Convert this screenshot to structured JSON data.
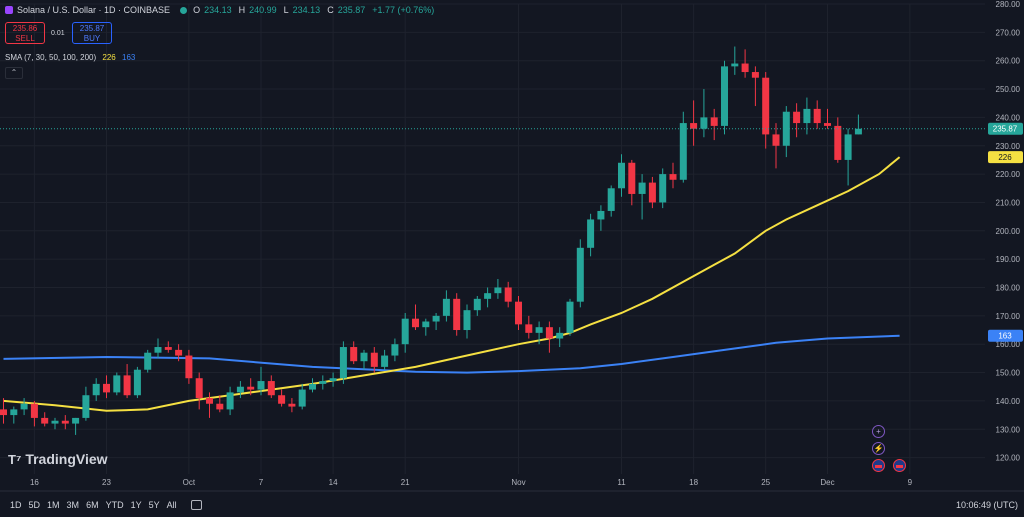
{
  "header": {
    "title": "Solana / U.S. Dollar · 1D · COINBASE",
    "o_label": "O",
    "o_value": "234.13",
    "h_label": "H",
    "h_value": "240.99",
    "l_label": "L",
    "l_value": "234.13",
    "c_label": "C",
    "c_value": "235.87",
    "change": "+1.77 (+0.76%)"
  },
  "trade": {
    "sell_price": "235.86",
    "sell_label": "SELL",
    "spread": "0.01",
    "buy_price": "235.87",
    "buy_label": "BUY"
  },
  "indicator": {
    "label": "SMA (7, 30, 50, 100, 200)",
    "value1": "226",
    "value2": "163"
  },
  "logo": "TradingView",
  "timeframes": [
    "1D",
    "5D",
    "1M",
    "3M",
    "6M",
    "YTD",
    "1Y",
    "5Y",
    "All"
  ],
  "clock": "10:06:49 (UTC)",
  "colors": {
    "up": "#26a69a",
    "down": "#f23645",
    "sma_short": "#f5e042",
    "sma_long": "#3b82f6",
    "bg": "#131722"
  },
  "chart_data": {
    "type": "candlestick",
    "ylim": [
      115,
      280
    ],
    "y_ticks": [
      "120.00",
      "130.00",
      "140.00",
      "150.00",
      "160.00",
      "170.00",
      "180.00",
      "190.00",
      "200.00",
      "210.00",
      "220.00",
      "230.00",
      "240.00",
      "250.00",
      "260.00",
      "270.00",
      "280.00"
    ],
    "x_ticks": [
      {
        "label": "16",
        "index": 3
      },
      {
        "label": "23",
        "index": 10
      },
      {
        "label": "Oct",
        "index": 18
      },
      {
        "label": "7",
        "index": 25
      },
      {
        "label": "14",
        "index": 32
      },
      {
        "label": "21",
        "index": 39
      },
      {
        "label": "Nov",
        "index": 50
      },
      {
        "label": "11",
        "index": 60
      },
      {
        "label": "18",
        "index": 67
      },
      {
        "label": "25",
        "index": 74
      },
      {
        "label": "Dec",
        "index": 80
      },
      {
        "label": "9",
        "index": 88
      }
    ],
    "candles": [
      [
        137,
        141,
        132,
        135
      ],
      [
        135,
        138,
        132,
        137
      ],
      [
        137,
        141,
        135,
        139
      ],
      [
        139,
        140,
        131,
        134
      ],
      [
        134,
        136,
        131,
        132
      ],
      [
        132,
        134,
        130,
        133
      ],
      [
        133,
        135,
        130,
        132
      ],
      [
        132,
        134,
        128,
        134
      ],
      [
        134,
        145,
        133,
        142
      ],
      [
        142,
        148,
        140,
        146
      ],
      [
        146,
        149,
        141,
        143
      ],
      [
        143,
        150,
        142,
        149
      ],
      [
        149,
        153,
        141,
        142
      ],
      [
        142,
        152,
        141,
        151
      ],
      [
        151,
        158,
        150,
        157
      ],
      [
        157,
        162,
        155,
        159
      ],
      [
        159,
        161,
        157,
        158
      ],
      [
        158,
        160,
        154,
        156
      ],
      [
        156,
        158,
        146,
        148
      ],
      [
        148,
        150,
        137,
        141
      ],
      [
        141,
        143,
        134,
        139
      ],
      [
        139,
        142,
        136,
        137
      ],
      [
        137,
        145,
        135,
        143
      ],
      [
        143,
        147,
        141,
        145
      ],
      [
        145,
        148,
        142,
        144
      ],
      [
        144,
        152,
        142,
        147
      ],
      [
        147,
        149,
        141,
        142
      ],
      [
        142,
        144,
        138,
        139
      ],
      [
        139,
        141,
        136,
        138
      ],
      [
        138,
        146,
        137,
        144
      ],
      [
        144,
        148,
        143,
        146
      ],
      [
        146,
        149,
        144,
        147
      ],
      [
        147,
        150,
        145,
        148
      ],
      [
        148,
        161,
        146,
        159
      ],
      [
        159,
        161,
        153,
        154
      ],
      [
        154,
        158,
        151,
        157
      ],
      [
        157,
        159,
        150,
        152
      ],
      [
        152,
        158,
        151,
        156
      ],
      [
        156,
        162,
        154,
        160
      ],
      [
        160,
        171,
        157,
        169
      ],
      [
        169,
        174,
        165,
        166
      ],
      [
        166,
        169,
        163,
        168
      ],
      [
        168,
        171,
        165,
        170
      ],
      [
        170,
        179,
        168,
        176
      ],
      [
        176,
        178,
        163,
        165
      ],
      [
        165,
        174,
        162,
        172
      ],
      [
        172,
        177,
        170,
        176
      ],
      [
        176,
        180,
        173,
        178
      ],
      [
        178,
        183,
        176,
        180
      ],
      [
        180,
        182,
        173,
        175
      ],
      [
        175,
        177,
        165,
        167
      ],
      [
        167,
        170,
        162,
        164
      ],
      [
        164,
        168,
        160,
        166
      ],
      [
        166,
        168,
        157,
        162
      ],
      [
        162,
        166,
        159,
        164
      ],
      [
        164,
        176,
        163,
        175
      ],
      [
        175,
        197,
        173,
        194
      ],
      [
        194,
        206,
        191,
        204
      ],
      [
        204,
        209,
        200,
        207
      ],
      [
        207,
        216,
        205,
        215
      ],
      [
        215,
        227,
        212,
        224
      ],
      [
        224,
        225,
        209,
        213
      ],
      [
        213,
        220,
        204,
        217
      ],
      [
        217,
        219,
        208,
        210
      ],
      [
        210,
        222,
        208,
        220
      ],
      [
        220,
        224,
        215,
        218
      ],
      [
        218,
        242,
        217,
        238
      ],
      [
        238,
        246,
        230,
        236
      ],
      [
        236,
        250,
        233,
        240
      ],
      [
        240,
        243,
        232,
        237
      ],
      [
        237,
        260,
        234,
        258
      ],
      [
        258,
        265,
        255,
        259
      ],
      [
        259,
        264,
        254,
        256
      ],
      [
        256,
        258,
        244,
        254
      ],
      [
        254,
        256,
        229,
        234
      ],
      [
        234,
        238,
        222,
        230
      ],
      [
        230,
        244,
        226,
        242
      ],
      [
        242,
        245,
        233,
        238
      ],
      [
        238,
        247,
        234,
        243
      ],
      [
        243,
        246,
        236,
        238
      ],
      [
        238,
        243,
        236,
        237
      ],
      [
        237,
        240,
        224,
        225
      ],
      [
        225,
        236,
        216,
        234
      ],
      [
        234,
        241,
        234,
        236
      ]
    ],
    "sma_short": [
      [
        0,
        140
      ],
      [
        5,
        138.5
      ],
      [
        10,
        136.5
      ],
      [
        14,
        137
      ],
      [
        18,
        140
      ],
      [
        22,
        142
      ],
      [
        26,
        144
      ],
      [
        30,
        146
      ],
      [
        35,
        149
      ],
      [
        40,
        152
      ],
      [
        45,
        156
      ],
      [
        50,
        160
      ],
      [
        53,
        162
      ],
      [
        55,
        164
      ],
      [
        57,
        167
      ],
      [
        60,
        171
      ],
      [
        63,
        176
      ],
      [
        66,
        182
      ],
      [
        69,
        188
      ],
      [
        71,
        192
      ],
      [
        74,
        200
      ],
      [
        76,
        204
      ],
      [
        79,
        209
      ],
      [
        82,
        214
      ],
      [
        85,
        220
      ],
      [
        87,
        226
      ]
    ],
    "sma_long": [
      [
        0,
        154.8
      ],
      [
        10,
        155.5
      ],
      [
        20,
        155
      ],
      [
        30,
        152
      ],
      [
        40,
        150.3
      ],
      [
        45,
        150
      ],
      [
        50,
        150.5
      ],
      [
        56,
        151.5
      ],
      [
        60,
        153
      ],
      [
        65,
        155.5
      ],
      [
        70,
        158
      ],
      [
        75,
        160.5
      ],
      [
        80,
        162
      ],
      [
        87,
        163
      ]
    ]
  }
}
